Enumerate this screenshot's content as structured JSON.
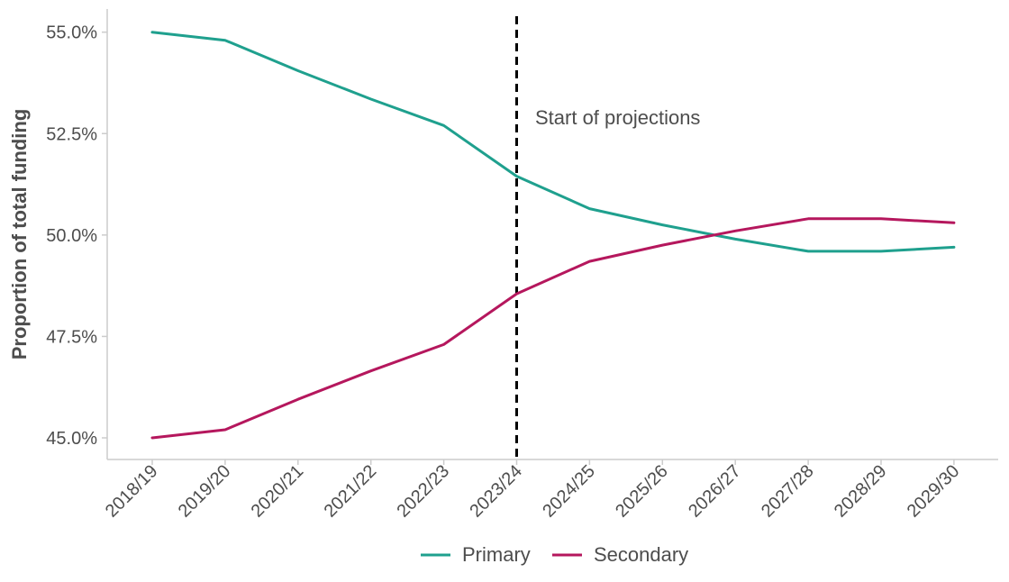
{
  "chart_data": {
    "type": "line",
    "title": "",
    "xlabel": "",
    "ylabel": "Proportion of total funding",
    "categories": [
      "2018/19",
      "2019/20",
      "2020/21",
      "2021/22",
      "2022/23",
      "2023/24",
      "2024/25",
      "2025/26",
      "2026/27",
      "2027/28",
      "2028/29",
      "2029/30"
    ],
    "ylim": [
      44.55,
      55.5
    ],
    "yticks": [
      45.0,
      47.5,
      50.0,
      52.5,
      55.0
    ],
    "ytick_labels": [
      "45.0%",
      "47.5%",
      "50.0%",
      "52.5%",
      "55.0%"
    ],
    "series": [
      {
        "name": "Primary",
        "color": "#1fa08e",
        "values": [
          55.0,
          54.8,
          54.05,
          53.35,
          52.7,
          51.45,
          50.65,
          50.25,
          49.9,
          49.6,
          49.6,
          49.7
        ]
      },
      {
        "name": "Secondary",
        "color": "#b5175d",
        "values": [
          45.0,
          45.2,
          45.95,
          46.65,
          47.3,
          48.55,
          49.35,
          49.75,
          50.1,
          50.4,
          50.4,
          50.3
        ]
      }
    ],
    "reference_line": {
      "category": "2023/24",
      "style": "dashed",
      "color": "#000000"
    },
    "annotation": "Start of projections",
    "legend_position": "bottom",
    "grid": false
  }
}
